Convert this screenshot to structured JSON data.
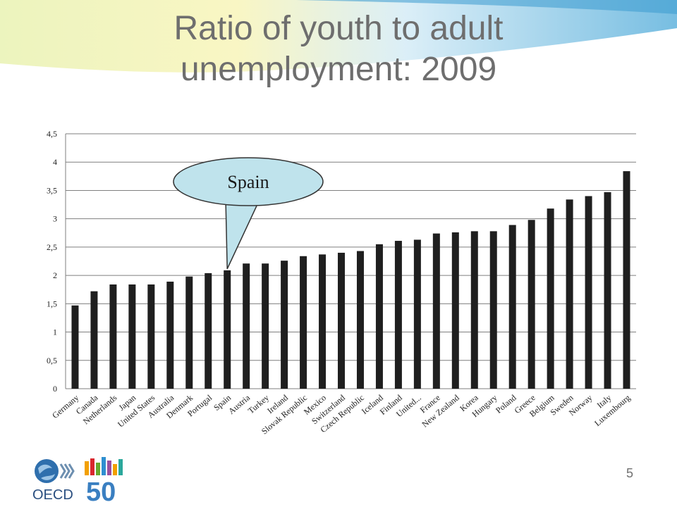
{
  "slide": {
    "title": "Ratio of youth to adult unemployment: 2009",
    "page_number": "5",
    "logo_text": "OECD",
    "logo_number": "50"
  },
  "callout": {
    "text": "Spain",
    "target_category": "Spain"
  },
  "colors": {
    "bar": "#1f1f1f",
    "grid": "#7f7f7f",
    "callout_fill": "#bfe3ec",
    "title": "#6e6e6e"
  },
  "chart_data": {
    "type": "bar",
    "title": "",
    "xlabel": "",
    "ylabel": "",
    "ylim": [
      0,
      4.5
    ],
    "yticks": [
      "0",
      "0,5",
      "1",
      "1,5",
      "2",
      "2,5",
      "3",
      "3,5",
      "4",
      "4,5"
    ],
    "gridlines": true,
    "categories": [
      "Germany",
      "Canada",
      "Netherlands",
      "Japan",
      "United States",
      "Australia",
      "Denmark",
      "Portugal",
      "Spain",
      "Austria",
      "Turkey",
      "Ireland",
      "Slovak Republic",
      "Mexico",
      "Switzerland",
      "Czech Republic",
      "Iceland",
      "Finland",
      "United...",
      "France",
      "New Zealand",
      "Korea",
      "Hungary",
      "Poland",
      "Greece",
      "Belgium",
      "Sweden",
      "Norway",
      "Italy",
      "Luxembourg"
    ],
    "values": [
      1.47,
      1.72,
      1.84,
      1.84,
      1.84,
      1.89,
      1.98,
      2.04,
      2.09,
      2.21,
      2.21,
      2.26,
      2.34,
      2.37,
      2.4,
      2.43,
      2.55,
      2.61,
      2.63,
      2.74,
      2.76,
      2.78,
      2.78,
      2.89,
      2.98,
      3.18,
      3.34,
      3.4,
      3.47,
      3.84
    ]
  }
}
